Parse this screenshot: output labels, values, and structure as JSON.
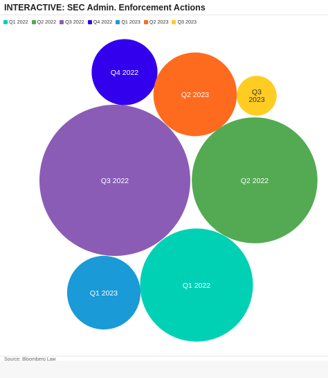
{
  "header": {
    "title": "INTERACTIVE: SEC Admin. Enforcement Actions"
  },
  "footer": {
    "source": "Source: Bloomberg Law"
  },
  "chart_data": {
    "type": "bubble",
    "title": "INTERACTIVE: SEC Admin. Enforcement Actions",
    "legend_position": "top-left",
    "grid": false,
    "series": [
      {
        "name": "Q1 2022",
        "label": "Q1 2022",
        "color": "#00d1b5",
        "value": 97
      },
      {
        "name": "Q2 2022",
        "label": "Q2 2022",
        "color": "#53aa52",
        "value": 120
      },
      {
        "name": "Q3 2022",
        "label": "Q3 2022",
        "color": "#8b5cb6",
        "value": 173
      },
      {
        "name": "Q4 2022",
        "label": "Q4 2022",
        "color": "#3300ee",
        "value": 33
      },
      {
        "name": "Q1 2023",
        "label": "Q1 2023",
        "color": "#1a9ad6",
        "value": 41
      },
      {
        "name": "Q2 2023",
        "label": "Q2 2023",
        "color": "#ff6b1e",
        "value": 53
      },
      {
        "name": "Q3 2023",
        "label": "Q3 2023",
        "color": "#ffcc22",
        "value": 12
      }
    ]
  }
}
